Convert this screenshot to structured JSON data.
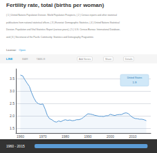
{
  "chart_data": {
    "type": "line",
    "title": "Fertility rate, total (births per woman)",
    "subtitle": [
      "( 1 ) United Nations Population Division. World Population Prospects, ( 2 ) Census reports and other statistical",
      "publications from national statistical offices, ( 3 ) Eurostat: Demographic Statistics, ( 4 ) United Nations Statistical",
      "Division. Population and Vital Statistics Report (various years), ( 5 ) U.S. Census Bureau: International Database,",
      "and ( 6 ) Secretariat of the Pacific Community: Statistics and Demography Programme."
    ],
    "annotations": [
      [
        "LINE",
        "BAR",
        "TABLE"
      ],
      [
        "License:",
        "Open"
      ],
      [
        "Add Series",
        "Share",
        "Details"
      ],
      [
        "United States",
        "1.9"
      ],
      [
        "1960 - 2015"
      ]
    ],
    "x": [
      1960,
      1961,
      1962,
      1963,
      1964,
      1965,
      1966,
      1967,
      1968,
      1969,
      1970,
      1971,
      1972,
      1973,
      1974,
      1975,
      1976,
      1977,
      1978,
      1979,
      1980,
      1981,
      1982,
      1983,
      1984,
      1985,
      1986,
      1987,
      1988,
      1989,
      1990,
      1991,
      1992,
      1993,
      1994,
      1995,
      1996,
      1997,
      1998,
      1999,
      2000,
      2001,
      2002,
      2003,
      2004,
      2005,
      2006,
      2007,
      2008,
      2009,
      2010,
      2011,
      2012,
      2013,
      2014,
      2015,
      2016
    ],
    "values": [
      3.65,
      3.62,
      3.46,
      3.32,
      3.19,
      2.93,
      2.72,
      2.56,
      2.49,
      2.46,
      2.48,
      2.27,
      2.01,
      1.88,
      1.84,
      1.77,
      1.74,
      1.79,
      1.76,
      1.81,
      1.84,
      1.81,
      1.83,
      1.8,
      1.81,
      1.84,
      1.84,
      1.87,
      1.93,
      2.01,
      2.08,
      2.07,
      2.05,
      2.02,
      2.0,
      1.98,
      1.98,
      1.97,
      2.0,
      2.0,
      2.06,
      2.03,
      2.01,
      2.04,
      2.05,
      2.05,
      2.1,
      2.12,
      2.09,
      2.0,
      1.93,
      1.89,
      1.88,
      1.86,
      1.86,
      1.84,
      1.8
    ],
    "color": "#5b9bd5",
    "xlim": [
      1958,
      2018
    ],
    "xticks": [
      1960,
      1970,
      1980,
      1990,
      2000,
      2010
    ],
    "ylim": [
      1.3,
      3.9
    ],
    "yticks": [
      1.5,
      {
        "value": 2.0,
        "label": "2.0"
      },
      2.5,
      {
        "value": 3.0,
        "label": "3.0"
      },
      3.5
    ],
    "grid": "y"
  }
}
